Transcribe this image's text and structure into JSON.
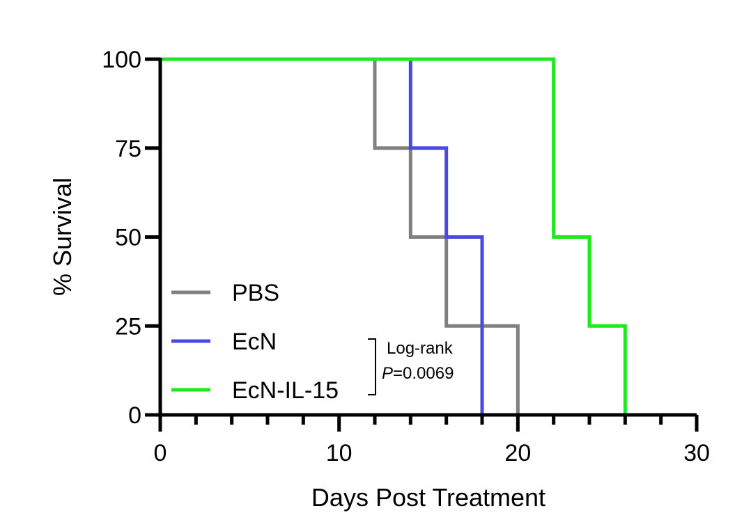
{
  "chart_data": {
    "type": "line",
    "step": true,
    "title": "",
    "xlabel": "Days Post Treatment",
    "ylabel": "% Survival",
    "xlim": [
      0,
      30
    ],
    "ylim": [
      0,
      100
    ],
    "x_major_ticks": [
      0,
      10,
      20,
      30
    ],
    "x_tick_labels": [
      "0",
      "10",
      "20",
      "30"
    ],
    "x_minor_step": 2,
    "y_ticks": [
      0,
      25,
      50,
      75,
      100
    ],
    "y_tick_labels": [
      "0",
      "25",
      "50",
      "75",
      "100"
    ],
    "grid": false,
    "legend_position": "bottom-left",
    "series": [
      {
        "name": "PBS",
        "color": "#808080",
        "x": [
          0,
          12,
          14,
          16,
          20
        ],
        "y": [
          100,
          75,
          50,
          25,
          0
        ]
      },
      {
        "name": "EcN",
        "color": "#4a4ae0",
        "x": [
          0,
          14,
          16,
          18
        ],
        "y": [
          100,
          75,
          50,
          0
        ]
      },
      {
        "name": "EcN-IL-15",
        "color": "#1ee81e",
        "x": [
          0,
          22,
          24,
          26
        ],
        "y": [
          100,
          50,
          25,
          0
        ]
      }
    ],
    "annotation": {
      "line1": "Log-rank",
      "p_symbol": "P",
      "p_value": "=0.0069"
    }
  }
}
